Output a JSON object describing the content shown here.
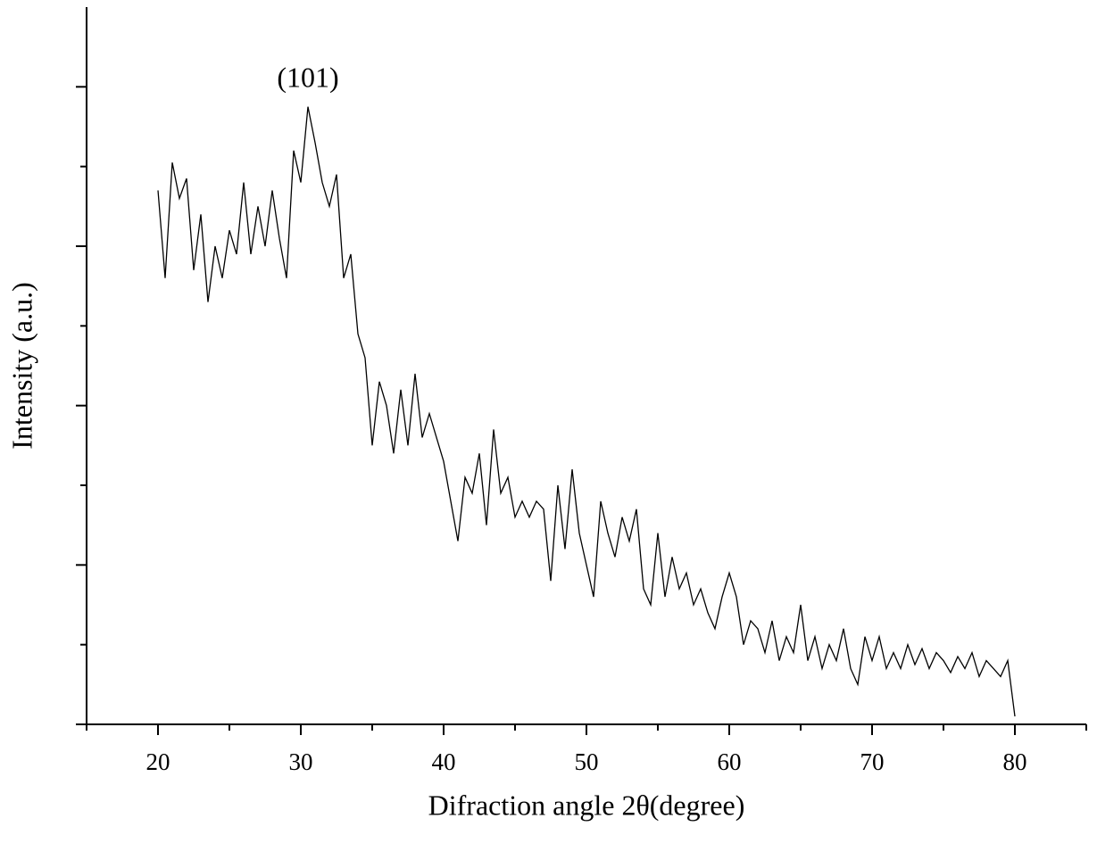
{
  "chart_data": {
    "type": "line",
    "x_label": "Difraction angle 2θ(degree)",
    "y_label": "Intensity (a.u.)",
    "annotation": {
      "text": "(101)",
      "x": 30.5,
      "y": 8.08
    },
    "x": [
      20,
      20.5,
      21,
      21.5,
      22,
      22.5,
      23,
      23.5,
      24,
      24.5,
      25,
      25.5,
      26,
      26.5,
      27,
      27.5,
      28,
      28.5,
      29,
      29.5,
      30,
      30.5,
      31,
      31.5,
      32,
      32.5,
      33,
      33.5,
      34,
      34.5,
      35,
      35.5,
      36,
      36.5,
      37,
      37.5,
      38,
      38.5,
      39,
      39.5,
      40,
      40.5,
      41,
      41.5,
      42,
      42.5,
      43,
      43.5,
      44,
      44.5,
      45,
      45.5,
      46,
      46.5,
      47,
      47.5,
      48,
      48.5,
      49,
      49.5,
      50,
      50.5,
      51,
      51.5,
      52,
      52.5,
      53,
      53.5,
      54,
      54.5,
      55,
      55.5,
      56,
      56.5,
      57,
      57.5,
      58,
      58.5,
      59,
      59.5,
      60,
      60.5,
      61,
      61.5,
      62,
      62.5,
      63,
      63.5,
      64,
      64.5,
      65,
      65.5,
      66,
      66.5,
      67,
      67.5,
      68,
      68.5,
      69,
      69.5,
      70,
      70.5,
      71,
      71.5,
      72,
      72.5,
      73,
      73.5,
      74,
      74.5,
      75,
      75.5,
      76,
      76.5,
      77,
      77.5,
      78,
      78.5,
      79,
      79.5,
      80
    ],
    "values": [
      6.7,
      5.6,
      7.05,
      6.6,
      6.85,
      5.7,
      6.4,
      5.3,
      6.0,
      5.6,
      6.2,
      5.9,
      6.8,
      5.9,
      6.5,
      6.0,
      6.7,
      6.1,
      5.6,
      7.2,
      6.8,
      7.75,
      7.3,
      6.8,
      6.5,
      6.9,
      5.6,
      5.9,
      4.9,
      4.6,
      3.5,
      4.3,
      4.0,
      3.4,
      4.2,
      3.5,
      4.4,
      3.6,
      3.9,
      3.6,
      3.3,
      2.8,
      2.3,
      3.1,
      2.9,
      3.4,
      2.5,
      3.7,
      2.9,
      3.1,
      2.6,
      2.8,
      2.6,
      2.8,
      2.7,
      1.8,
      3.0,
      2.2,
      3.2,
      2.4,
      2.0,
      1.6,
      2.8,
      2.4,
      2.1,
      2.6,
      2.3,
      2.7,
      1.7,
      1.5,
      2.4,
      1.6,
      2.1,
      1.7,
      1.9,
      1.5,
      1.7,
      1.4,
      1.2,
      1.6,
      1.9,
      1.6,
      1.0,
      1.3,
      1.2,
      0.9,
      1.3,
      0.8,
      1.1,
      0.9,
      1.5,
      0.8,
      1.1,
      0.7,
      1.0,
      0.8,
      1.2,
      0.7,
      0.5,
      1.1,
      0.8,
      1.1,
      0.7,
      0.9,
      0.7,
      1.0,
      0.75,
      0.95,
      0.7,
      0.9,
      0.8,
      0.65,
      0.85,
      0.7,
      0.9,
      0.6,
      0.8,
      0.7,
      0.6,
      0.8,
      0.1
    ],
    "color": "#000000",
    "xlim": [
      15,
      85
    ],
    "xticks": [
      20,
      30,
      40,
      50,
      60,
      70,
      80
    ],
    "xticks_minor": [
      15,
      25,
      35,
      45,
      55,
      65,
      75,
      85
    ],
    "ylim": [
      0,
      9
    ],
    "yticks": [
      0,
      2,
      4,
      6,
      8
    ],
    "yticks_minor": [
      1,
      3,
      5,
      7
    ],
    "grid": false
  }
}
